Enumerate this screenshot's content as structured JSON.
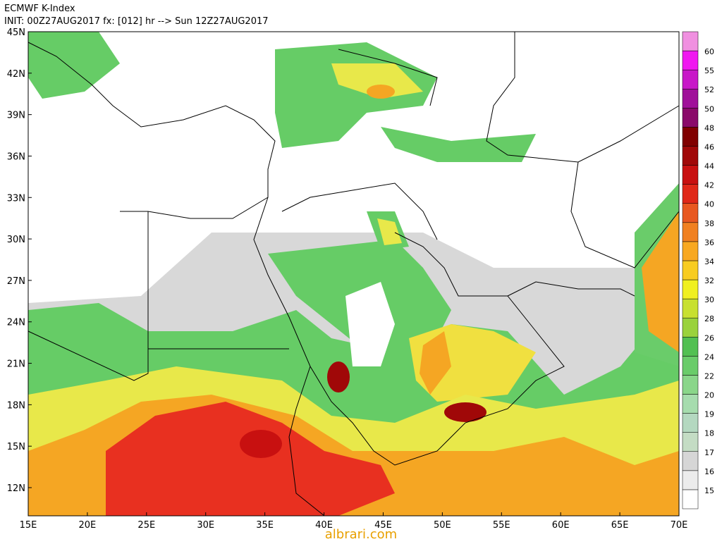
{
  "header": {
    "title": "ECMWF K-Index",
    "subtitle": "INIT: 00Z27AUG2017 fx: [012] hr --> Sun 12Z27AUG2017"
  },
  "map": {
    "lat_labels": [
      "45N",
      "42N",
      "39N",
      "36N",
      "33N",
      "30N",
      "27N",
      "24N",
      "21N",
      "18N",
      "15N",
      "12N"
    ],
    "lon_labels": [
      "15E",
      "20E",
      "25E",
      "30E",
      "35E",
      "40E",
      "45E",
      "50E",
      "55E",
      "60E",
      "65E",
      "70E"
    ]
  },
  "colorbar": {
    "levels": [
      15,
      16,
      17,
      18,
      19,
      20,
      22,
      24,
      26,
      28,
      30,
      32,
      34,
      36,
      38,
      40,
      42,
      44,
      46,
      48,
      50,
      52,
      55,
      60
    ],
    "colors": [
      "#ffffff",
      "#ececec",
      "#d6d6d6",
      "#c4dcc4",
      "#b4d8c0",
      "#a6dcae",
      "#8ad68a",
      "#6acc6a",
      "#52c052",
      "#9ad23c",
      "#c8e030",
      "#f0f020",
      "#f8cc20",
      "#f8a820",
      "#f08020",
      "#e85820",
      "#e02818",
      "#c81010",
      "#a00808",
      "#800000",
      "#8a0a6a",
      "#a0109a",
      "#c818c8",
      "#f018f0",
      "#f090e0"
    ]
  },
  "watermark": "albrari.com"
}
